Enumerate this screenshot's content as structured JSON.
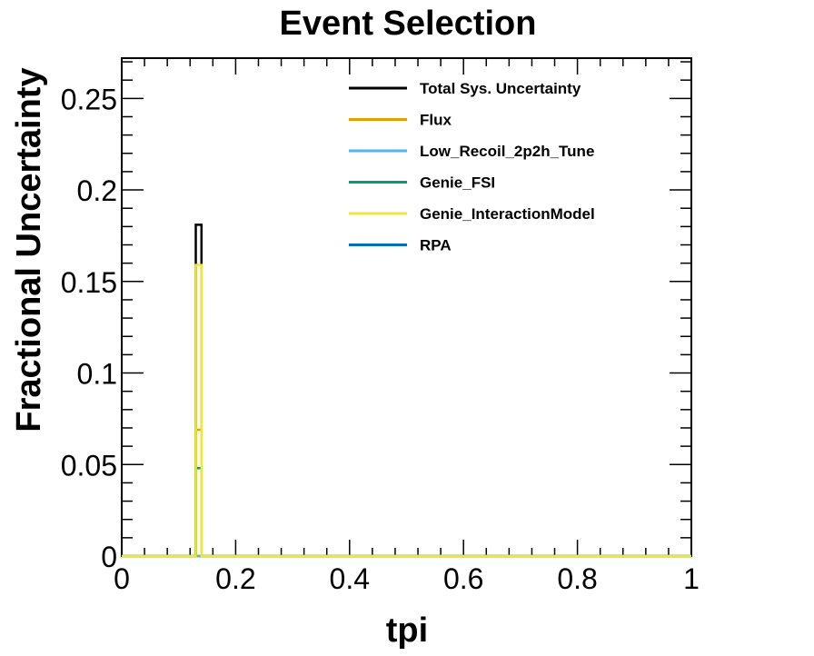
{
  "chart_data": {
    "type": "line",
    "title": "Event Selection",
    "xlabel": "tpi",
    "ylabel": "Fractional Uncertainty",
    "xlim": [
      0,
      1
    ],
    "ylim": [
      0,
      0.272
    ],
    "xticks": [
      0,
      0.2,
      0.4,
      0.6,
      0.8,
      1
    ],
    "xtick_labels": [
      "0",
      "0.2",
      "0.4",
      "0.6",
      "0.8",
      "1"
    ],
    "yticks": [
      0,
      0.05,
      0.1,
      0.15,
      0.2,
      0.25
    ],
    "ytick_labels": [
      "0",
      "0.05",
      "0.1",
      "0.15",
      "0.2",
      "0.25"
    ],
    "grid": false,
    "legend_position": "top-right",
    "bin_edges": [
      0.13,
      0.14
    ],
    "series": [
      {
        "name": "Total Sys. Uncertainty",
        "color": "#000000",
        "values": [
          0.181
        ]
      },
      {
        "name": "Flux",
        "color": "#e69f00",
        "values": [
          0.069
        ]
      },
      {
        "name": "Low_Recoil_2p2h_Tune",
        "color": "#56b4e9",
        "values": [
          0.0
        ]
      },
      {
        "name": "Genie_FSI",
        "color": "#009e73",
        "values": [
          0.048
        ]
      },
      {
        "name": "Genie_InteractionModel",
        "color": "#f0e442",
        "values": [
          0.159
        ]
      },
      {
        "name": "RPA",
        "color": "#0072b2",
        "values": [
          0.0
        ]
      }
    ]
  }
}
